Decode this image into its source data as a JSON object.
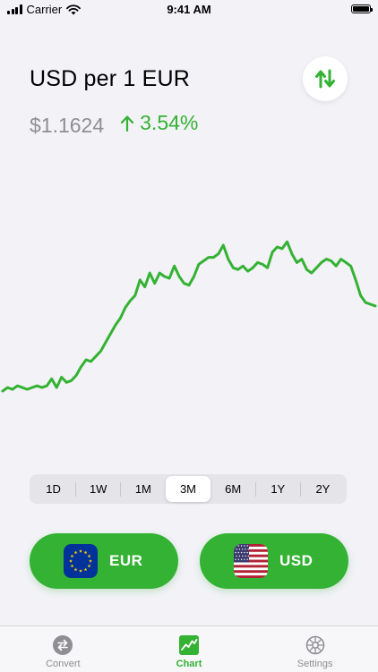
{
  "status_bar": {
    "carrier": "Carrier",
    "time": "9:41 AM"
  },
  "header": {
    "title": "USD per 1 EUR",
    "price": "$1.1624",
    "change": "3.54%",
    "change_direction": "up"
  },
  "colors": {
    "accent": "#34b233",
    "muted": "#8e8e93",
    "background": "#f2f2f7"
  },
  "chart_data": {
    "type": "line",
    "title": "",
    "xlabel": "",
    "ylabel": "",
    "range": "3M",
    "y": [
      0.0,
      0.02,
      0.01,
      0.03,
      0.02,
      0.01,
      0.02,
      0.03,
      0.02,
      0.03,
      0.07,
      0.02,
      0.08,
      0.05,
      0.06,
      0.09,
      0.14,
      0.18,
      0.17,
      0.2,
      0.23,
      0.28,
      0.33,
      0.38,
      0.42,
      0.48,
      0.52,
      0.55,
      0.64,
      0.6,
      0.68,
      0.62,
      0.68,
      0.66,
      0.65,
      0.72,
      0.66,
      0.62,
      0.61,
      0.66,
      0.73,
      0.75,
      0.77,
      0.77,
      0.79,
      0.84,
      0.76,
      0.71,
      0.7,
      0.72,
      0.69,
      0.71,
      0.74,
      0.73,
      0.71,
      0.8,
      0.83,
      0.82,
      0.86,
      0.79,
      0.74,
      0.76,
      0.7,
      0.68,
      0.71,
      0.74,
      0.76,
      0.75,
      0.72,
      0.76,
      0.74,
      0.72,
      0.64,
      0.55,
      0.51,
      0.5,
      0.49
    ],
    "ylim": [
      0,
      1
    ],
    "grid": false,
    "color": "#34b233"
  },
  "segments": [
    {
      "label": "1D",
      "active": false
    },
    {
      "label": "1W",
      "active": false
    },
    {
      "label": "1M",
      "active": false
    },
    {
      "label": "3M",
      "active": true
    },
    {
      "label": "6M",
      "active": false
    },
    {
      "label": "1Y",
      "active": false
    },
    {
      "label": "2Y",
      "active": false
    }
  ],
  "currencies": {
    "from": {
      "code": "EUR",
      "flag_icon": "eu-flag-icon"
    },
    "to": {
      "code": "USD",
      "flag_icon": "us-flag-icon"
    }
  },
  "tabs": [
    {
      "label": "Convert",
      "icon": "convert-icon",
      "active": false
    },
    {
      "label": "Chart",
      "icon": "chart-icon",
      "active": true
    },
    {
      "label": "Settings",
      "icon": "settings-icon",
      "active": false
    }
  ]
}
